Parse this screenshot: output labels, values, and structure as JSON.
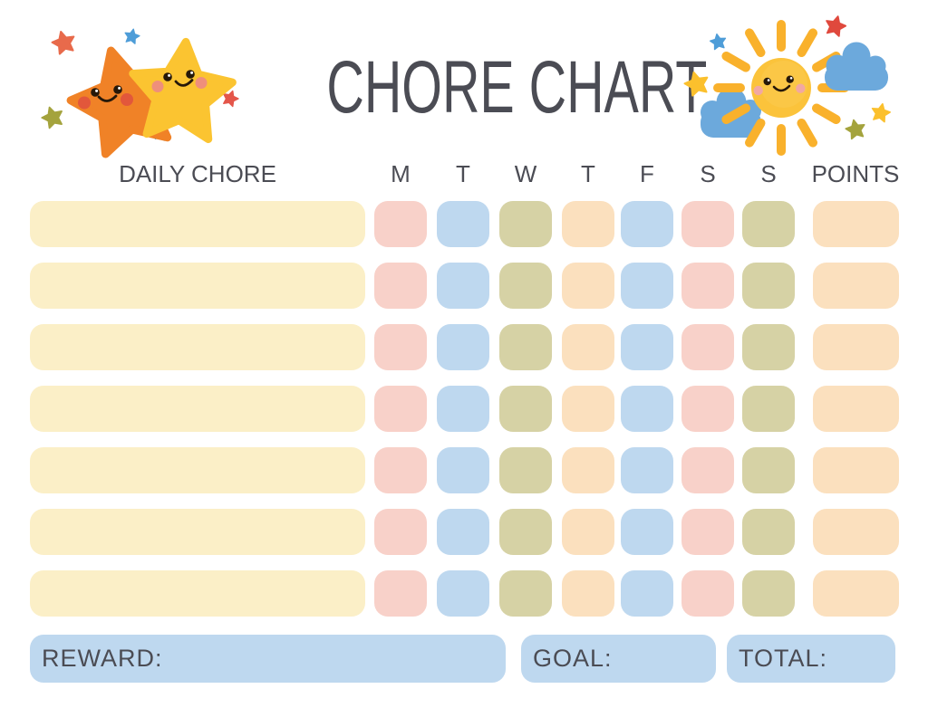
{
  "title": "CHORE CHART",
  "table": {
    "chore_column_header": "DAILY CHORE",
    "day_headers": [
      "M",
      "T",
      "W",
      "T",
      "F",
      "S",
      "S"
    ],
    "points_header": "POINTS",
    "row_count": 7,
    "day_cell_pattern": [
      "pink",
      "blue",
      "olive",
      "peach",
      "blue",
      "pink",
      "olive"
    ],
    "chore_cell_color": "cream",
    "points_cell_color": "peach"
  },
  "footer": {
    "reward_label": "REWARD:",
    "goal_label": "GOAL:",
    "total_label": "TOTAL:"
  },
  "colors": {
    "text": "#4B4C54",
    "cream": "#FBEFC7",
    "pink": "#F8D1C9",
    "blue": "#BED8EF",
    "olive": "#D6D2A5",
    "peach": "#FBE0BE",
    "footer_box": "#BED8EF"
  },
  "decorations": {
    "left": "two-smiling-stars",
    "right": "smiling-sun-with-clouds"
  }
}
